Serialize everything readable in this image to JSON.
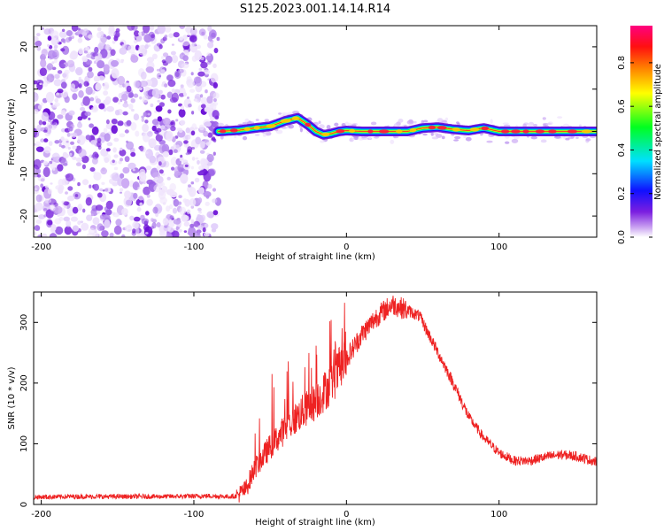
{
  "figure": {
    "title": "S125.2023.001.14.14.R14"
  },
  "chart_data": [
    {
      "type": "heatmap",
      "xlabel": "Height of straight line (km)",
      "ylabel": "Frequency (Hz)",
      "xlim": [
        -205,
        164
      ],
      "ylim": [
        -25,
        25
      ],
      "x_ticks": [
        -200,
        -100,
        0,
        100
      ],
      "x_tick_labels": [
        "-200",
        "-100",
        "0",
        "100"
      ],
      "y_ticks": [
        -20,
        -10,
        0,
        10,
        20
      ],
      "y_tick_labels": [
        "-20",
        "-10",
        "0",
        "10",
        "20"
      ],
      "grid": false,
      "colorbar": {
        "label": "Normalized spectral amplitude",
        "range": [
          0,
          0.97
        ],
        "ticks": [
          0.0,
          0.2,
          0.4,
          0.6,
          0.8
        ],
        "tick_labels": [
          "0.0",
          "0.2",
          "0.4",
          "0.6",
          "0.8"
        ],
        "colormap": [
          "#f5eefd",
          "#b07ee8",
          "#6a00d8",
          "#0000ff",
          "#00ffff",
          "#00ff00",
          "#ffff00",
          "#ff8000",
          "#ff0000",
          "#ff0080"
        ]
      },
      "noise_region": {
        "x_range": [
          -205,
          -84
        ],
        "freq_range": [
          -25,
          25
        ],
        "amplitude_range": [
          0.0,
          0.12
        ]
      },
      "signal_ridge": {
        "x": [
          -84,
          -70,
          -60,
          -50,
          -40,
          -32,
          -25,
          -20,
          -15,
          -10,
          -5,
          0,
          10,
          20,
          40,
          50,
          60,
          70,
          80,
          90,
          100,
          120,
          140,
          164
        ],
        "freq": [
          0.0,
          0.3,
          0.8,
          1.2,
          2.5,
          3.2,
          1.5,
          0.0,
          -0.8,
          -0.5,
          0.0,
          0.2,
          0.0,
          0.0,
          0.0,
          0.8,
          1.0,
          0.5,
          0.2,
          0.8,
          0.0,
          0.0,
          0.0,
          0.0
        ],
        "peak_amplitude": 0.97
      }
    },
    {
      "type": "line",
      "xlabel": "Height of straight line (km)",
      "ylabel": "SNR (10 * v/v)",
      "xlim": [
        -205,
        164
      ],
      "ylim": [
        0,
        350
      ],
      "x_ticks": [
        -200,
        -100,
        0,
        100
      ],
      "x_tick_labels": [
        "-200",
        "-100",
        "0",
        "100"
      ],
      "y_ticks": [
        0,
        100,
        200,
        300
      ],
      "y_tick_labels": [
        "0",
        "100",
        "200",
        "300"
      ],
      "grid": false,
      "color": "#ee2222",
      "series": [
        {
          "x": [
            -205,
            -180,
            -150,
            -120,
            -90,
            -78,
            -72,
            -66,
            -60,
            -50,
            -40,
            -30,
            -20,
            -10,
            0,
            10,
            20,
            30,
            40,
            48,
            55,
            62,
            70,
            80,
            90,
            100,
            110,
            120,
            130,
            140,
            150,
            164
          ],
          "values": [
            12,
            13,
            13,
            13,
            14,
            13,
            14,
            25,
            60,
            95,
            125,
            150,
            170,
            200,
            240,
            280,
            310,
            330,
            320,
            310,
            275,
            240,
            200,
            145,
            110,
            85,
            72,
            72,
            78,
            82,
            80,
            70
          ]
        }
      ]
    }
  ]
}
